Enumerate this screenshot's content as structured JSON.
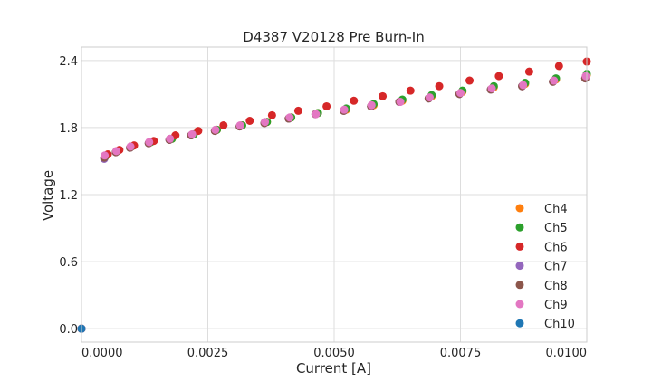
{
  "chart_data": {
    "type": "scatter",
    "title": "D4387 V20128 Pre Burn-In",
    "xlabel": "Current [A]",
    "ylabel": "Voltage",
    "xlim": [
      0.0,
      0.01
    ],
    "ylim": [
      -0.12,
      2.52
    ],
    "x_ticks": [
      0.0,
      0.0025,
      0.005,
      0.0075,
      0.01
    ],
    "x_tick_labels": [
      "0.0000",
      "0.0025",
      "0.0050",
      "0.0075",
      "0.0100"
    ],
    "y_ticks": [
      0.0,
      0.6,
      1.2,
      1.8,
      2.4
    ],
    "y_tick_labels": [
      "0.0",
      "0.6",
      "1.2",
      "1.8",
      "2.4"
    ],
    "grid": true,
    "legend_position": "lower-right",
    "series": [
      {
        "name": "Ch4",
        "color": "#ff7f0e",
        "x": [
          0.0,
          0.00047,
          0.00071,
          0.00099,
          0.00137,
          0.00179,
          0.00222,
          0.00268,
          0.00318,
          0.00367,
          0.00415,
          0.00468,
          0.00524,
          0.00578,
          0.00635,
          0.00693,
          0.00754,
          0.00816,
          0.00878,
          0.00939,
          0.01
        ],
        "y": [
          0.0,
          1.54,
          1.59,
          1.63,
          1.67,
          1.7,
          1.74,
          1.78,
          1.82,
          1.85,
          1.89,
          1.93,
          1.96,
          2.0,
          2.04,
          2.08,
          2.12,
          2.16,
          2.19,
          2.23,
          2.27
        ]
      },
      {
        "name": "Ch5",
        "color": "#2ca02c",
        "x": [
          0.0,
          0.00047,
          0.00071,
          0.00099,
          0.00137,
          0.00179,
          0.00222,
          0.00268,
          0.00318,
          0.00367,
          0.00415,
          0.00468,
          0.00524,
          0.00578,
          0.00635,
          0.00693,
          0.00754,
          0.00816,
          0.00878,
          0.00939,
          0.01
        ],
        "y": [
          0.0,
          1.54,
          1.59,
          1.63,
          1.67,
          1.7,
          1.74,
          1.78,
          1.82,
          1.85,
          1.89,
          1.93,
          1.97,
          2.01,
          2.05,
          2.09,
          2.13,
          2.17,
          2.2,
          2.24,
          2.28
        ]
      },
      {
        "name": "Ch6",
        "color": "#d62728",
        "x": [
          0.0,
          0.00052,
          0.00075,
          0.00104,
          0.00143,
          0.00186,
          0.00231,
          0.00281,
          0.00333,
          0.00377,
          0.00429,
          0.00485,
          0.00539,
          0.00596,
          0.00651,
          0.00708,
          0.00768,
          0.00826,
          0.00886,
          0.00945,
          0.01
        ],
        "y": [
          0.0,
          1.56,
          1.6,
          1.64,
          1.68,
          1.73,
          1.77,
          1.82,
          1.86,
          1.91,
          1.95,
          1.99,
          2.04,
          2.08,
          2.13,
          2.17,
          2.22,
          2.26,
          2.3,
          2.35,
          2.39
        ]
      },
      {
        "name": "Ch7",
        "color": "#9467bd",
        "x": [
          0.0,
          0.00045,
          0.00068,
          0.00096,
          0.00133,
          0.00174,
          0.00217,
          0.00264,
          0.00313,
          0.00362,
          0.0041,
          0.00463,
          0.00519,
          0.00573,
          0.00629,
          0.00687,
          0.00748,
          0.0081,
          0.00872,
          0.00933,
          0.00997
        ],
        "y": [
          0.0,
          1.52,
          1.58,
          1.62,
          1.66,
          1.69,
          1.73,
          1.77,
          1.81,
          1.84,
          1.88,
          1.92,
          1.95,
          1.99,
          2.03,
          2.06,
          2.1,
          2.14,
          2.17,
          2.21,
          2.24
        ]
      },
      {
        "name": "Ch8",
        "color": "#8c564b",
        "x": [
          0.0,
          0.00045,
          0.00068,
          0.00096,
          0.00133,
          0.00174,
          0.00217,
          0.00264,
          0.00313,
          0.00362,
          0.0041,
          0.00463,
          0.00519,
          0.00573,
          0.00629,
          0.00687,
          0.00748,
          0.0081,
          0.00872,
          0.00933,
          0.00997
        ],
        "y": [
          0.0,
          1.53,
          1.58,
          1.62,
          1.66,
          1.69,
          1.73,
          1.77,
          1.81,
          1.84,
          1.88,
          1.92,
          1.95,
          1.99,
          2.03,
          2.06,
          2.1,
          2.14,
          2.17,
          2.21,
          2.24
        ]
      },
      {
        "name": "Ch9",
        "color": "#e377c2",
        "x": [
          0.0,
          0.00046,
          0.00069,
          0.00097,
          0.00134,
          0.00175,
          0.00219,
          0.00265,
          0.00314,
          0.00363,
          0.00412,
          0.00464,
          0.0052,
          0.00574,
          0.00631,
          0.00689,
          0.0075,
          0.00812,
          0.00874,
          0.00935,
          0.00998
        ],
        "y": [
          0.0,
          1.55,
          1.59,
          1.63,
          1.67,
          1.7,
          1.74,
          1.78,
          1.82,
          1.85,
          1.89,
          1.92,
          1.96,
          2.0,
          2.03,
          2.07,
          2.11,
          2.15,
          2.18,
          2.22,
          2.26
        ]
      },
      {
        "name": "Ch10",
        "color": "#1f77b4",
        "x": [
          0.0
        ],
        "y": [
          0.0
        ]
      }
    ]
  }
}
